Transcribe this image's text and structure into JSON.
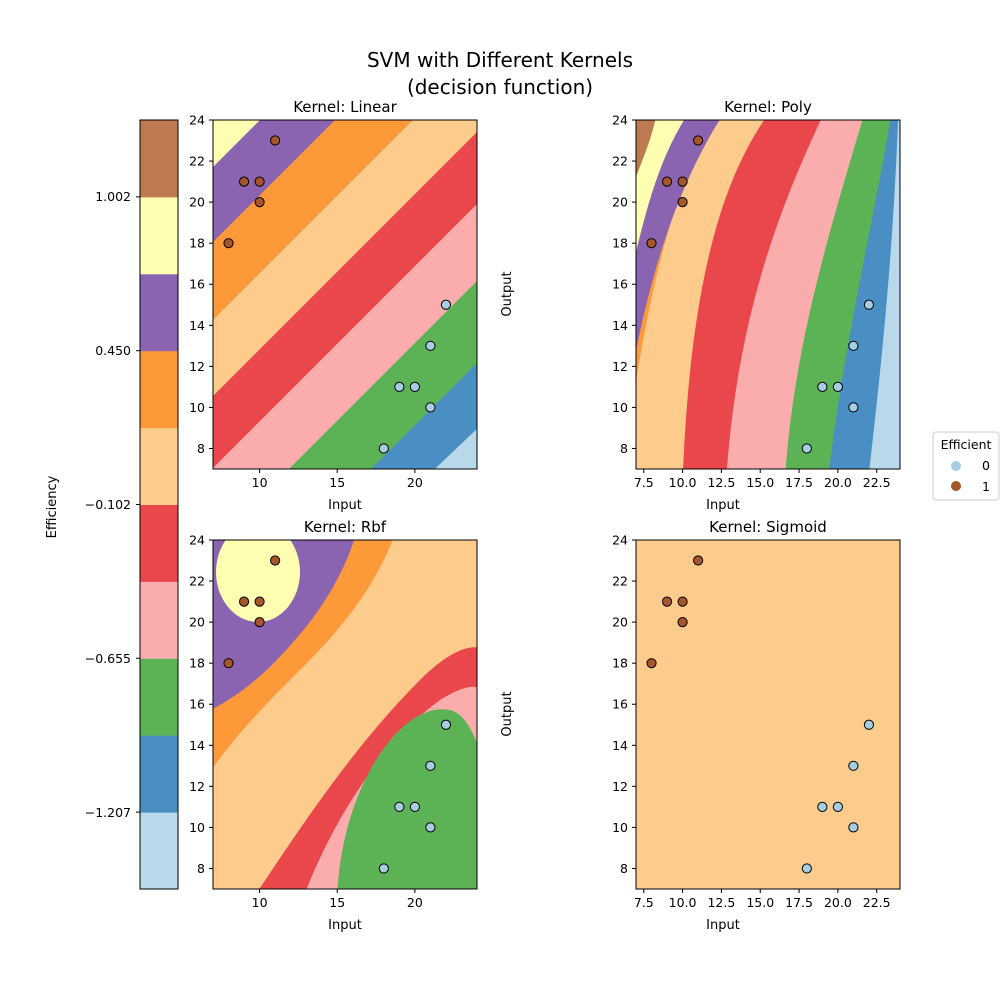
{
  "figure": {
    "title_line1": "SVM with Different Kernels",
    "title_line2": "(decision function)"
  },
  "colorbar": {
    "label": "Efficiency",
    "tick_labels": [
      "1.002",
      "0.450",
      "−0.102",
      "−0.655",
      "−1.207"
    ],
    "level_colors": [
      "#b9d8ea",
      "#4a8fc4",
      "#5cb356",
      "#fbadae",
      "#e9474c",
      "#fdcc8c",
      "#fd9939",
      "#8a63b1",
      "#ffffb1",
      "#bf7a52"
    ]
  },
  "legend": {
    "title": "Efficient",
    "entries": [
      {
        "label": "0",
        "color": "#a6cee3"
      },
      {
        "label": "1",
        "color": "#a65628"
      }
    ]
  },
  "chart_data": [
    {
      "type": "scatter",
      "title": "Kernel: Linear",
      "xlabel": "Input",
      "ylabel": "",
      "xlim": [
        7,
        24
      ],
      "ylim": [
        7,
        24
      ],
      "xticks": [
        "10",
        "15",
        "20"
      ],
      "yticks": [
        "8",
        "10",
        "12",
        "14",
        "16",
        "18",
        "20",
        "22",
        "24"
      ],
      "background": "contour bands, diagonal",
      "series": [
        {
          "name": "0",
          "x": [
            18,
            19,
            20,
            21,
            21,
            22
          ],
          "y": [
            8,
            11,
            11,
            10,
            13,
            15
          ]
        },
        {
          "name": "1",
          "x": [
            8,
            9,
            10,
            10,
            11
          ],
          "y": [
            18,
            21,
            21,
            20,
            23
          ]
        }
      ]
    },
    {
      "type": "scatter",
      "title": "Kernel: Poly",
      "xlabel": "Input",
      "ylabel": "Output",
      "xlim": [
        7,
        24
      ],
      "ylim": [
        7,
        24
      ],
      "xticks": [
        "7.5",
        "10.0",
        "12.5",
        "15.0",
        "17.5",
        "20.0",
        "22.5"
      ],
      "yticks": [
        "8",
        "10",
        "12",
        "14",
        "16",
        "18",
        "20",
        "22",
        "24"
      ],
      "background": "contour bands, curved",
      "series": [
        {
          "name": "0",
          "x": [
            18,
            19,
            20,
            21,
            21,
            22
          ],
          "y": [
            8,
            11,
            11,
            10,
            13,
            15
          ]
        },
        {
          "name": "1",
          "x": [
            8,
            9,
            10,
            10,
            11
          ],
          "y": [
            18,
            21,
            21,
            20,
            23
          ]
        }
      ]
    },
    {
      "type": "scatter",
      "title": "Kernel: Rbf",
      "xlabel": "Input",
      "ylabel": "",
      "xlim": [
        7,
        24
      ],
      "ylim": [
        7,
        24
      ],
      "xticks": [
        "10",
        "15",
        "20"
      ],
      "yticks": [
        "8",
        "10",
        "12",
        "14",
        "16",
        "18",
        "20",
        "22",
        "24"
      ],
      "background": "contour bands, elliptical",
      "series": [
        {
          "name": "0",
          "x": [
            18,
            19,
            20,
            21,
            21,
            22
          ],
          "y": [
            8,
            11,
            11,
            10,
            13,
            15
          ]
        },
        {
          "name": "1",
          "x": [
            8,
            9,
            10,
            10,
            11
          ],
          "y": [
            18,
            21,
            21,
            20,
            23
          ]
        }
      ]
    },
    {
      "type": "scatter",
      "title": "Kernel: Sigmoid",
      "xlabel": "Input",
      "ylabel": "Output",
      "xlim": [
        7,
        24
      ],
      "ylim": [
        7,
        24
      ],
      "xticks": [
        "7.5",
        "10.0",
        "12.5",
        "15.0",
        "17.5",
        "20.0",
        "22.5"
      ],
      "yticks": [
        "8",
        "10",
        "12",
        "14",
        "16",
        "18",
        "20",
        "22",
        "24"
      ],
      "background": "single flat band",
      "series": [
        {
          "name": "0",
          "x": [
            18,
            19,
            20,
            21,
            21,
            22
          ],
          "y": [
            8,
            11,
            11,
            10,
            13,
            15
          ]
        },
        {
          "name": "1",
          "x": [
            8,
            9,
            10,
            10,
            11
          ],
          "y": [
            18,
            21,
            21,
            20,
            23
          ]
        }
      ]
    }
  ]
}
